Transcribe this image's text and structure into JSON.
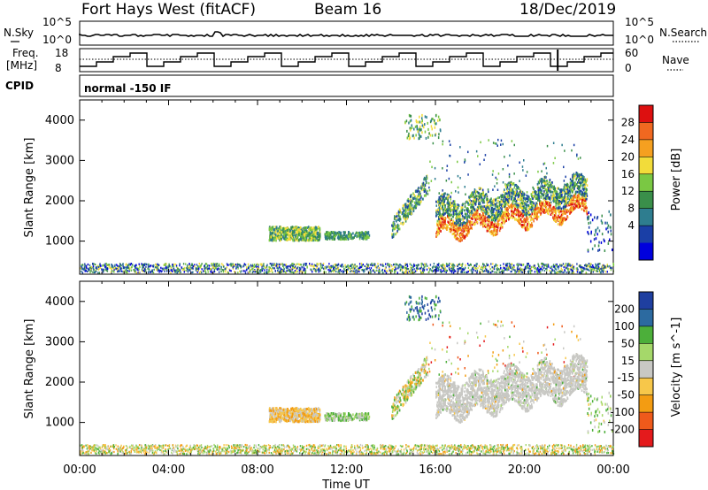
{
  "header": {
    "station": "Fort Hays West (fitACF)",
    "beam": "Beam 16",
    "date": "18/Dec/2019"
  },
  "panels": {
    "nsky_label": "N.Sky",
    "nsky_ticks": [
      "10^5",
      "10^0"
    ],
    "nsearch_label": "N.Search",
    "freq_label_1": "Freq.",
    "freq_label_2": "[MHz]",
    "freq_ticks": [
      "18",
      "8"
    ],
    "nave_label": "Nave",
    "nave_ticks": [
      "60",
      "0"
    ],
    "cpid_label": "CPID",
    "cpid_value": "normal -150 IF"
  },
  "colors": {
    "power_scale": [
      "#0000dd",
      "#1a3fa6",
      "#2e7d8f",
      "#3a8f4a",
      "#7ac843",
      "#f2dc3a",
      "#f5a020",
      "#f06820",
      "#dd1010"
    ],
    "velocity_scale": [
      "#e41a1c",
      "#ef5a1b",
      "#f39c12",
      "#f7c74a",
      "#c8c8c4",
      "#a5d86a",
      "#4caf3a",
      "#2c6aa0",
      "#1f3fa0"
    ]
  },
  "chart_data": [
    {
      "type": "heatmap",
      "ylabel": "Slant Range [km]",
      "xlabel": "Time UT",
      "x_ticks": [
        "00:00",
        "04:00",
        "08:00",
        "12:00",
        "16:00",
        "20:00",
        "00:00"
      ],
      "y_ticks": [
        1000,
        2000,
        3000,
        4000
      ],
      "ylim": [
        180,
        4500
      ],
      "colorbar_label": "Power [dB]",
      "colorbar_ticks": [
        4,
        8,
        12,
        16,
        20,
        24,
        28
      ],
      "regions": [
        {
          "t_start_h": 0.0,
          "t_end_h": 24.0,
          "r_min_km": 180,
          "r_max_km": 420,
          "value": "6-14 dB"
        },
        {
          "t_start_h": 8.5,
          "t_end_h": 10.8,
          "r_min_km": 950,
          "r_max_km": 1350,
          "value": "10-18 dB"
        },
        {
          "t_start_h": 11.0,
          "t_end_h": 13.0,
          "r_min_km": 1000,
          "r_max_km": 1200,
          "value": "8-14 dB"
        },
        {
          "t_start_h": 14.6,
          "t_end_h": 15.2,
          "r_min_km": 3700,
          "r_max_km": 4100,
          "value": "8-16 dB"
        },
        {
          "t_start_h": 16.0,
          "t_end_h": 20.0,
          "r_min_km": 1000,
          "r_max_km": 2000,
          "value": "16-28 dB"
        },
        {
          "t_start_h": 20.0,
          "t_end_h": 22.8,
          "r_min_km": 1000,
          "r_max_km": 2300,
          "value": "14-28 dB"
        }
      ]
    },
    {
      "type": "heatmap",
      "ylabel": "Slant Range [km]",
      "xlabel": "Time UT",
      "x_ticks": [
        "00:00",
        "04:00",
        "08:00",
        "12:00",
        "16:00",
        "20:00",
        "00:00"
      ],
      "y_ticks": [
        1000,
        2000,
        3000,
        4000
      ],
      "ylim": [
        180,
        4500
      ],
      "colorbar_label": "Velocity [m s^-1]",
      "colorbar_ticks": [
        "200",
        "100",
        "50",
        "15",
        "-15",
        "-50",
        "-100",
        "-200"
      ],
      "regions": [
        {
          "t_start_h": 0.0,
          "t_end_h": 24.0,
          "r_min_km": 180,
          "r_max_km": 420,
          "value": "-50 to 50 m/s"
        },
        {
          "t_start_h": 8.5,
          "t_end_h": 10.8,
          "r_min_km": 950,
          "r_max_km": 1350,
          "value": "-50 to -15 m/s"
        },
        {
          "t_start_h": 14.6,
          "t_end_h": 15.2,
          "r_min_km": 3700,
          "r_max_km": 4100,
          "value": "50 to 200 m/s"
        },
        {
          "t_start_h": 16.0,
          "t_end_h": 22.8,
          "r_min_km": 950,
          "r_max_km": 2300,
          "value": "-15 to 15 m/s"
        }
      ]
    }
  ]
}
